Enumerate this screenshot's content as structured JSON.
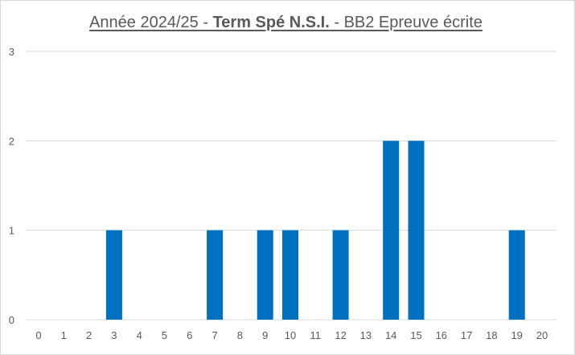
{
  "title": {
    "part1": "Année 2024/25 - ",
    "part2": "Term Spé N.S.I.",
    "part3": " - BB2 Epreuve écrite"
  },
  "chart_data": {
    "type": "bar",
    "title": "Année 2024/25 - Term Spé N.S.I. - BB2 Epreuve écrite",
    "xlabel": "",
    "ylabel": "",
    "categories": [
      "0",
      "1",
      "2",
      "3",
      "4",
      "5",
      "6",
      "7",
      "8",
      "9",
      "10",
      "11",
      "12",
      "13",
      "14",
      "15",
      "16",
      "17",
      "18",
      "19",
      "20"
    ],
    "values": [
      0,
      0,
      0,
      1,
      0,
      0,
      0,
      1,
      0,
      1,
      1,
      0,
      1,
      0,
      2,
      2,
      0,
      0,
      0,
      1,
      0
    ],
    "ylim": [
      0,
      3
    ],
    "yticks": [
      0,
      1,
      2,
      3
    ],
    "grid": true,
    "legend": "none",
    "bar_color": "#0070c0",
    "grid_color": "#d9d9d9"
  }
}
